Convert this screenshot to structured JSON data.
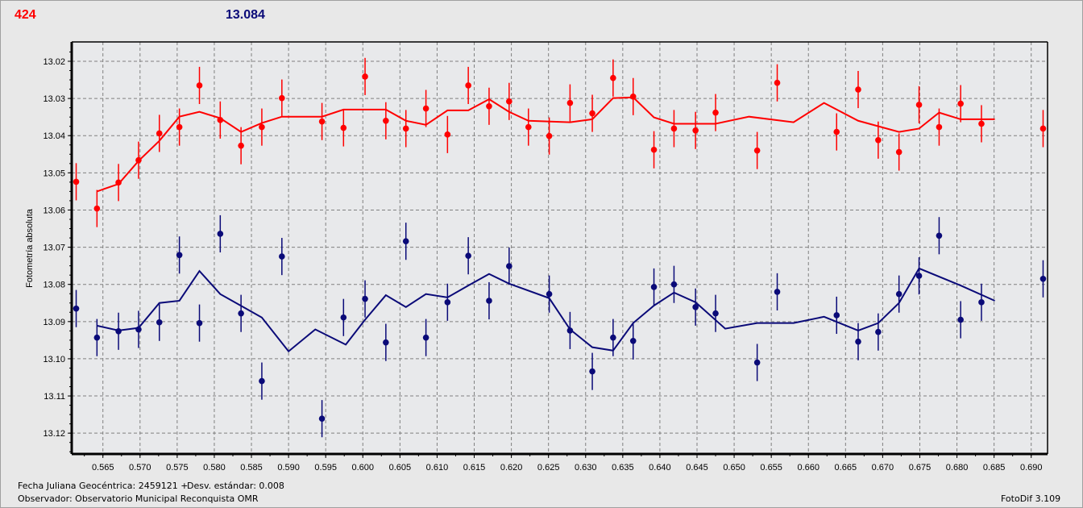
{
  "header": {
    "left_value": "424",
    "right_value": "13.084"
  },
  "footer": {
    "julian_date": "Fecha Juliana Geocéntrica: 2459121 +",
    "std_dev": "Desv. estándar: 0.008",
    "observer": "Observador: Observatorio Municipal Reconquista OMR",
    "version": "FotoDif 3.109"
  },
  "chart_data": {
    "type": "scatter",
    "ylabel": "Fotometría absoluta",
    "xlabel": "",
    "xlim": [
      0.5608,
      0.6922
    ],
    "ylim": [
      13.0148,
      13.1256
    ],
    "y_inverted": true,
    "grid": true,
    "x_ticks": [
      "0.565",
      "0.570",
      "0.575",
      "0.580",
      "0.585",
      "0.590",
      "0.595",
      "0.600",
      "0.605",
      "0.610",
      "0.615",
      "0.620",
      "0.625",
      "0.630",
      "0.635",
      "0.640",
      "0.645",
      "0.650",
      "0.655",
      "0.660",
      "0.665",
      "0.670",
      "0.675",
      "0.680",
      "0.685",
      "0.690"
    ],
    "y_ticks": [
      "13.02",
      "13.03",
      "13.04",
      "13.05",
      "13.06",
      "13.07",
      "13.08",
      "13.09",
      "13.10",
      "13.11",
      "13.12"
    ],
    "error": 0.005,
    "series": [
      {
        "color": "#ff0000",
        "x": [
          0.5614,
          0.5642,
          0.5671,
          0.5698,
          0.5726,
          0.5753,
          0.578,
          0.5808,
          0.5836,
          0.5864,
          0.5891,
          0.5945,
          0.5974,
          0.6003,
          0.6031,
          0.6058,
          0.6085,
          0.6114,
          0.6142,
          0.617,
          0.6197,
          0.6223,
          0.6251,
          0.6279,
          0.6309,
          0.6337,
          0.6364,
          0.6392,
          0.6419,
          0.6448,
          0.6475,
          0.6531,
          0.6558,
          0.6638,
          0.6667,
          0.6694,
          0.6722,
          0.6749,
          0.6776,
          0.6805,
          0.6833,
          0.6916
        ],
        "y": [
          13.0524,
          13.0596,
          13.0526,
          13.0466,
          13.0394,
          13.0377,
          13.0265,
          13.0358,
          13.0427,
          13.0377,
          13.0299,
          13.0362,
          13.0379,
          13.0241,
          13.036,
          13.0381,
          13.0327,
          13.0397,
          13.0265,
          13.0321,
          13.0308,
          13.0377,
          13.0401,
          13.0312,
          13.034,
          13.0245,
          13.0295,
          13.0438,
          13.0381,
          13.0386,
          13.0338,
          13.044,
          13.0258,
          13.039,
          13.0276,
          13.0412,
          13.0444,
          13.0317,
          13.0377,
          13.0314,
          13.0368,
          13.0381
        ],
        "fit_x": [
          0.5642,
          0.5671,
          0.5698,
          0.5726,
          0.5753,
          0.578,
          0.5808,
          0.5836,
          0.5864,
          0.5891,
          0.5945,
          0.5974,
          0.6031,
          0.6058,
          0.6085,
          0.6114,
          0.6142,
          0.617,
          0.6197,
          0.6223,
          0.6279,
          0.6309,
          0.6337,
          0.6364,
          0.6392,
          0.6419,
          0.6475,
          0.652,
          0.658,
          0.6621,
          0.6667,
          0.6722,
          0.6749,
          0.6776,
          0.6805,
          0.6851
        ],
        "fit_y": [
          13.055,
          13.053,
          13.0468,
          13.0414,
          13.0349,
          13.0336,
          13.0353,
          13.039,
          13.0366,
          13.0349,
          13.0349,
          13.033,
          13.033,
          13.036,
          13.0371,
          13.0332,
          13.0332,
          13.0302,
          13.0336,
          13.036,
          13.0364,
          13.0356,
          13.0299,
          13.0297,
          13.0351,
          13.0368,
          13.0368,
          13.0349,
          13.0364,
          13.0312,
          13.036,
          13.039,
          13.0381,
          13.0338,
          13.0356,
          13.0356
        ]
      },
      {
        "color": "#0a0a78",
        "x": [
          0.5614,
          0.5642,
          0.5671,
          0.5698,
          0.5726,
          0.5753,
          0.578,
          0.5808,
          0.5836,
          0.5864,
          0.5891,
          0.5945,
          0.5974,
          0.6003,
          0.6031,
          0.6058,
          0.6085,
          0.6114,
          0.6142,
          0.617,
          0.6197,
          0.6251,
          0.6279,
          0.6309,
          0.6337,
          0.6364,
          0.6392,
          0.6419,
          0.6448,
          0.6475,
          0.6531,
          0.6558,
          0.6638,
          0.6667,
          0.6694,
          0.6722,
          0.6749,
          0.6776,
          0.6805,
          0.6833,
          0.6916
        ],
        "y": [
          13.0865,
          13.0943,
          13.0926,
          13.0921,
          13.0902,
          13.0721,
          13.0904,
          13.0664,
          13.0878,
          13.106,
          13.0725,
          13.1161,
          13.0889,
          13.0839,
          13.0956,
          13.0684,
          13.0943,
          13.0848,
          13.0723,
          13.0844,
          13.0751,
          13.0826,
          13.0924,
          13.1034,
          13.0943,
          13.0952,
          13.0807,
          13.08,
          13.0861,
          13.0878,
          13.101,
          13.082,
          13.0883,
          13.0954,
          13.0928,
          13.0826,
          13.0777,
          13.0669,
          13.0895,
          13.0848,
          13.0785
        ],
        "fit_x": [
          0.5642,
          0.5671,
          0.5698,
          0.5726,
          0.5753,
          0.578,
          0.5808,
          0.5864,
          0.59,
          0.5936,
          0.5977,
          0.6003,
          0.6031,
          0.6058,
          0.6085,
          0.6114,
          0.6142,
          0.617,
          0.6197,
          0.6251,
          0.6279,
          0.6309,
          0.6337,
          0.6364,
          0.6392,
          0.6419,
          0.6448,
          0.6488,
          0.6531,
          0.658,
          0.6621,
          0.6667,
          0.6694,
          0.6722,
          0.6749,
          0.6805,
          0.6851
        ],
        "fit_y": [
          13.0911,
          13.0924,
          13.0917,
          13.085,
          13.0844,
          13.0764,
          13.0826,
          13.0889,
          13.098,
          13.0921,
          13.0962,
          13.0895,
          13.0829,
          13.0861,
          13.0826,
          13.0835,
          13.0803,
          13.0772,
          13.0798,
          13.0837,
          13.0921,
          13.0969,
          13.0978,
          13.0904,
          13.0857,
          13.0822,
          13.0848,
          13.0919,
          13.0904,
          13.0904,
          13.0887,
          13.0924,
          13.0904,
          13.085,
          13.0757,
          13.0803,
          13.0844
        ]
      }
    ]
  }
}
